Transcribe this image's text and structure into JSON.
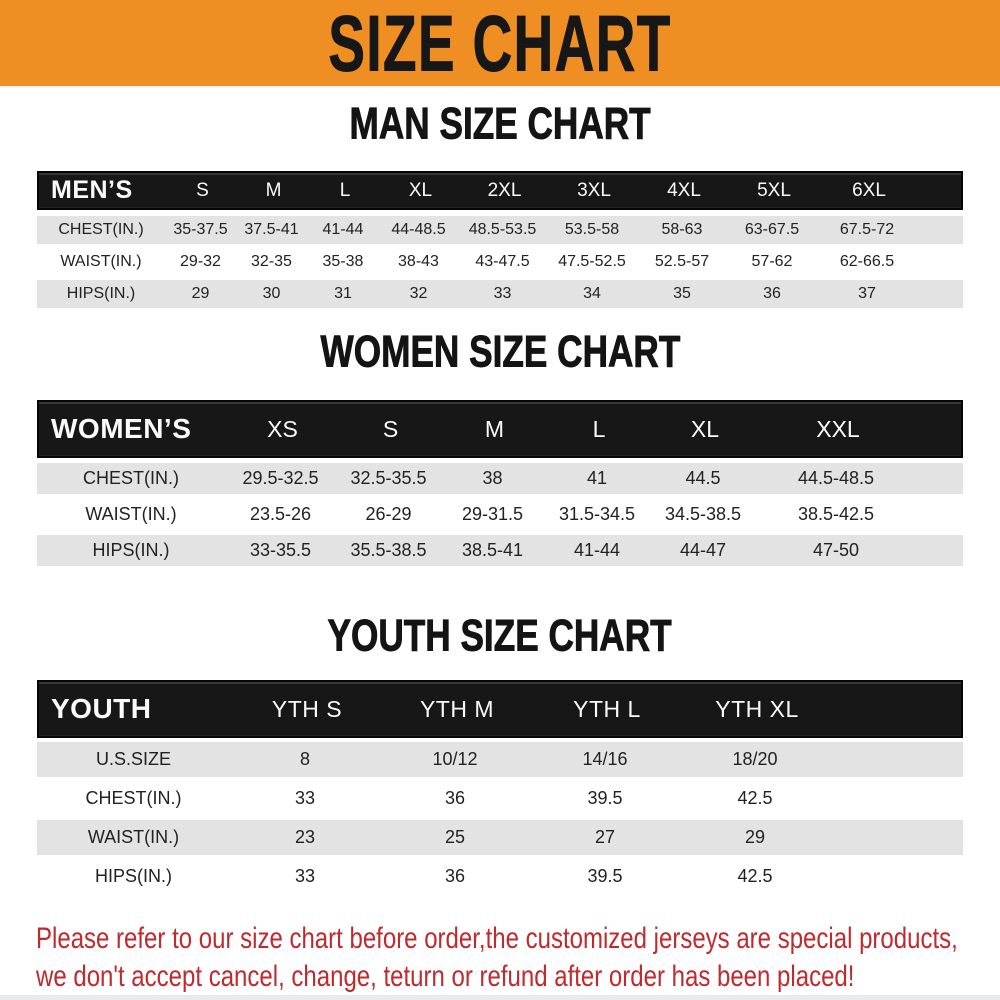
{
  "banner": {
    "title": "SIZE CHART"
  },
  "men": {
    "heading": "MAN SIZE CHART",
    "columns": [
      "MEN’S",
      "S",
      "M",
      "L",
      "XL",
      "2XL",
      "3XL",
      "4XL",
      "5XL",
      "6XL"
    ],
    "rows": [
      {
        "label": "CHEST(IN.)",
        "values": [
          "35-37.5",
          "37.5-41",
          "41-44",
          "44-48.5",
          "48.5-53.5",
          "53.5-58",
          "58-63",
          "63-67.5",
          "67.5-72"
        ]
      },
      {
        "label": "WAIST(IN.)",
        "values": [
          "29-32",
          "32-35",
          "35-38",
          "38-43",
          "43-47.5",
          "47.5-52.5",
          "52.5-57",
          "57-62",
          "62-66.5"
        ]
      },
      {
        "label": "HIPS(IN.)",
        "values": [
          "29",
          "30",
          "31",
          "32",
          "33",
          "34",
          "35",
          "36",
          "37"
        ]
      }
    ]
  },
  "women": {
    "heading": "WOMEN SIZE CHART",
    "columns": [
      "WOMEN’S",
      "XS",
      "S",
      "M",
      "L",
      "XL",
      "XXL"
    ],
    "rows": [
      {
        "label": "CHEST(IN.)",
        "values": [
          "29.5-32.5",
          "32.5-35.5",
          "38",
          "41",
          "44.5",
          "44.5-48.5"
        ]
      },
      {
        "label": "WAIST(IN.)",
        "values": [
          "23.5-26",
          "26-29",
          "29-31.5",
          "31.5-34.5",
          "34.5-38.5",
          "38.5-42.5"
        ]
      },
      {
        "label": "HIPS(IN.)",
        "values": [
          "33-35.5",
          "35.5-38.5",
          "38.5-41",
          "41-44",
          "44-47",
          "47-50"
        ]
      }
    ]
  },
  "youth": {
    "heading": "YOUTH SIZE CHART",
    "columns": [
      "YOUTH",
      "YTH S",
      "YTH M",
      "YTH L",
      "YTH XL"
    ],
    "rows": [
      {
        "label": "U.S.SIZE",
        "values": [
          "8",
          "10/12",
          "14/16",
          "18/20"
        ]
      },
      {
        "label": "CHEST(IN.)",
        "values": [
          "33",
          "36",
          "39.5",
          "42.5"
        ]
      },
      {
        "label": "WAIST(IN.)",
        "values": [
          "23",
          "25",
          "27",
          "29"
        ]
      },
      {
        "label": "HIPS(IN.)",
        "values": [
          "33",
          "36",
          "39.5",
          "42.5"
        ]
      }
    ]
  },
  "footer": {
    "line1": "Please refer to our size chart before order,the customized jerseys are special products,",
    "line2": "we don't accept cancel, change, teturn or refund after order has been placed!"
  },
  "colors": {
    "banner_bg": "#ee8e23",
    "bar_bg": "#171717",
    "row_alt": "#e3e3e3",
    "footer_text": "#bf2a2e"
  }
}
